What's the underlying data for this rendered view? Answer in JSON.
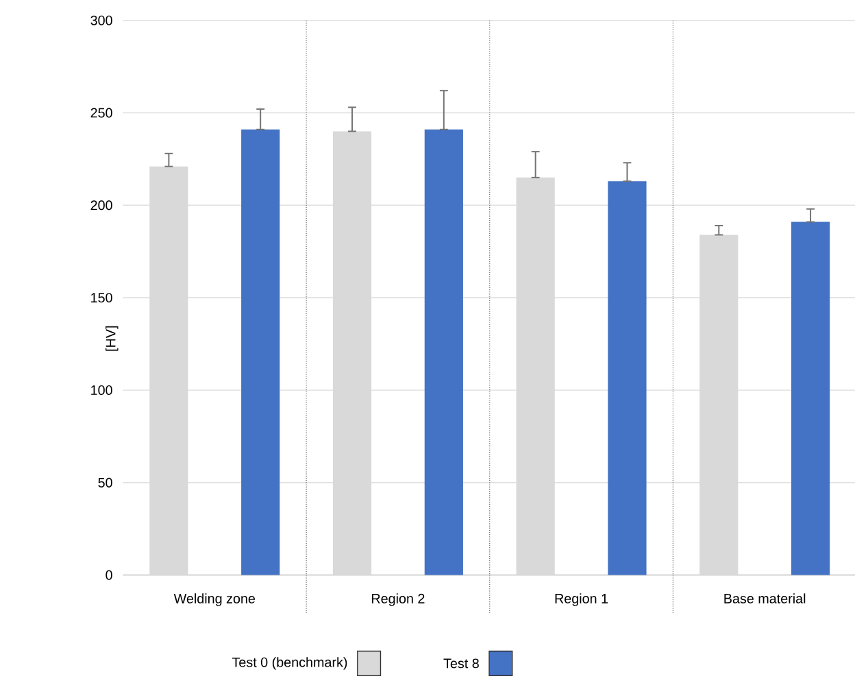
{
  "chart_data": {
    "type": "bar",
    "ylabel": "[HV]",
    "categories": [
      "Welding zone",
      "Region 2",
      "Region 1",
      "Base material"
    ],
    "series": [
      {
        "name": "Test 0 (benchmark)",
        "color": "#d9d9d9",
        "values": [
          221,
          240,
          215,
          184
        ],
        "errors": [
          [
            221,
            228
          ],
          [
            240,
            253
          ],
          [
            215,
            229
          ],
          [
            184,
            189
          ]
        ]
      },
      {
        "name": "Test 8",
        "color": "#4472c4",
        "values": [
          241,
          241,
          213,
          191
        ],
        "errors": [
          [
            241,
            252
          ],
          [
            241,
            262
          ],
          [
            213,
            223
          ],
          [
            191,
            198
          ]
        ]
      }
    ],
    "ylim": [
      0,
      300
    ],
    "yticks": [
      0,
      50,
      100,
      150,
      200,
      250,
      300
    ],
    "grid": "y",
    "legend": "bottom"
  }
}
